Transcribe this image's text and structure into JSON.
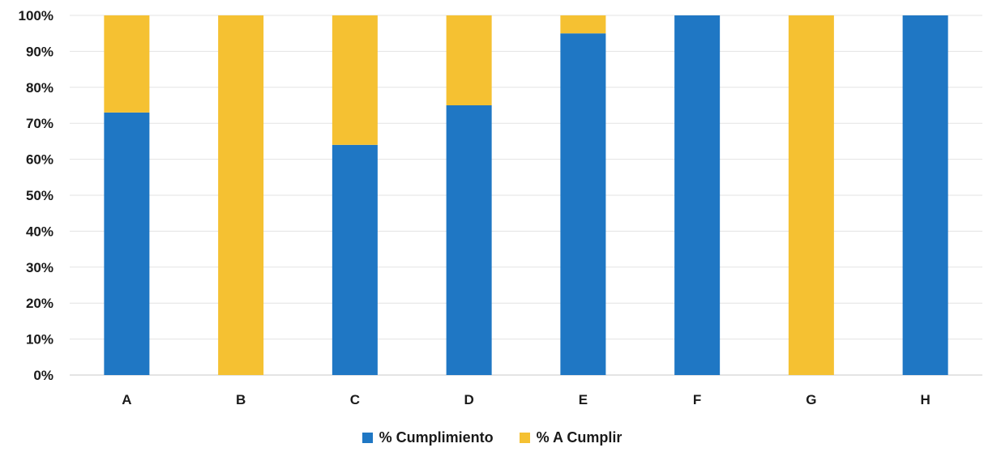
{
  "chart_data": {
    "type": "bar",
    "stacked": true,
    "categories": [
      "A",
      "B",
      "C",
      "D",
      "E",
      "F",
      "G",
      "H"
    ],
    "series": [
      {
        "name": "% Cumplimiento",
        "color": "#1f77c4",
        "values": [
          73,
          0,
          64,
          75,
          95,
          100,
          0,
          100
        ]
      },
      {
        "name": "% A Cumplir",
        "color": "#f5c132",
        "values": [
          27,
          100,
          36,
          25,
          5,
          0,
          100,
          0
        ]
      }
    ],
    "yticks": [
      "0%",
      "10%",
      "20%",
      "30%",
      "40%",
      "50%",
      "60%",
      "70%",
      "80%",
      "90%",
      "100%"
    ],
    "ylim": [
      0,
      100
    ],
    "grid": true,
    "legend_position": "bottom",
    "title": "",
    "xlabel": "",
    "ylabel": ""
  }
}
